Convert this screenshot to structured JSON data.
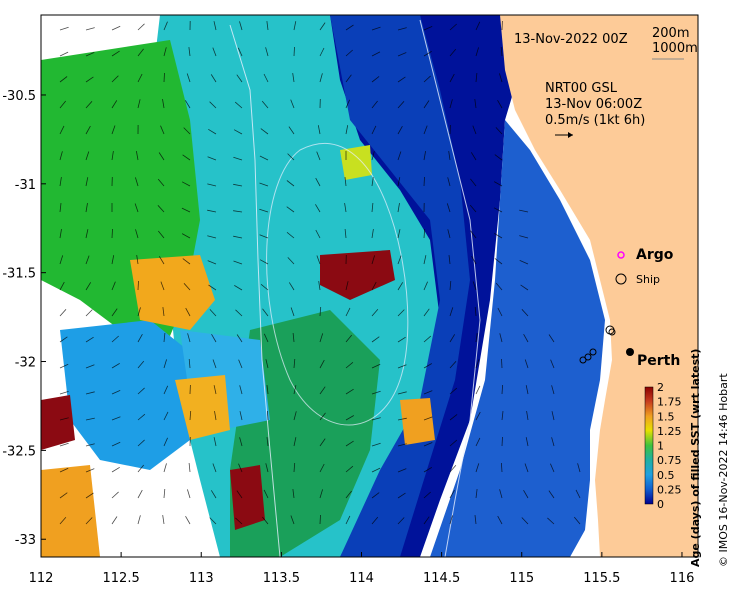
{
  "map": {
    "title": "",
    "date_label": "13-Nov-2022 00Z",
    "contour_labels": [
      "200m",
      "1000m"
    ],
    "current_product": "NRT00 GSL",
    "current_time": "13-Nov 06:00Z",
    "current_scale": "0.5m/s (1kt 6h)",
    "argo_label": "Argo",
    "ship_label": "Ship",
    "city_label": "Perth",
    "colorbar_title": "Age (days) of filled SST (wrt latest)",
    "credit": "© IMOS 16-Nov-2022 14:46 Hobart",
    "land_color": "#fdcb98",
    "argo_color": "#ff00ff",
    "xticks": [
      "112",
      "112.5",
      "113",
      "113.5",
      "114",
      "114.5",
      "115",
      "115.5",
      "116"
    ],
    "yticks": [
      "-30.5",
      "-31",
      "-31.5",
      "-32",
      "-32.5",
      "-33"
    ],
    "xlim": [
      112,
      116.1
    ],
    "ylim": [
      -33.1,
      -30.05
    ]
  },
  "colorbar": {
    "ticks": [
      "2",
      "1.75",
      "1.5",
      "1.25",
      "1",
      "0.75",
      "0.5",
      "0.25",
      "0"
    ],
    "colors": [
      "#8b0000",
      "#c63a1e",
      "#f0a020",
      "#e8e000",
      "#3ec23e",
      "#20b0a0",
      "#20a0e0",
      "#1060d0",
      "#000090"
    ]
  }
}
